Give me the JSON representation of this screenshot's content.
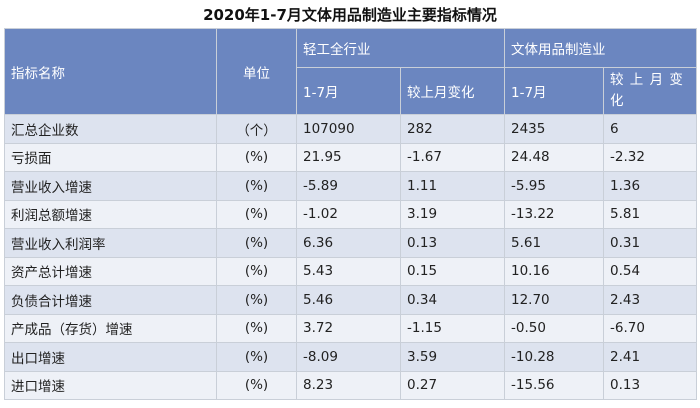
{
  "title": "2020年1-7月文体用品制造业主要指标情况",
  "header": {
    "indicator": "指标名称",
    "unit": "单位",
    "group1": "轻工全行业",
    "group2": "文体用品制造业",
    "sub1": "1-7月",
    "sub2": "较上月变化",
    "sub3": "1-7月",
    "sub4": "较 上 月 变 化"
  },
  "rows": [
    {
      "name": "汇总企业数",
      "unit": "（个）",
      "v1": "107090",
      "v2": "282",
      "v3": "2435",
      "v4": "6"
    },
    {
      "name": "亏损面",
      "unit": "(%)",
      "v1": "21.95",
      "v2": "-1.67",
      "v3": "24.48",
      "v4": "-2.32"
    },
    {
      "name": "营业收入增速",
      "unit": "(%)",
      "v1": "-5.89",
      "v2": "1.11",
      "v3": "-5.95",
      "v4": "1.36"
    },
    {
      "name": "利润总额增速",
      "unit": "(%)",
      "v1": "-1.02",
      "v2": "3.19",
      "v3": "-13.22",
      "v4": "5.81"
    },
    {
      "name": "营业收入利润率",
      "unit": "(%)",
      "v1": "6.36",
      "v2": "0.13",
      "v3": "5.61",
      "v4": "0.31"
    },
    {
      "name": "资产总计增速",
      "unit": "(%)",
      "v1": "5.43",
      "v2": "0.15",
      "v3": "10.16",
      "v4": "0.54"
    },
    {
      "name": "负债合计增速",
      "unit": "(%)",
      "v1": "5.46",
      "v2": "0.34",
      "v3": "12.70",
      "v4": "2.43"
    },
    {
      "name": "产成品（存货）增速",
      "unit": "(%)",
      "v1": "3.72",
      "v2": "-1.15",
      "v3": "-0.50",
      "v4": "-6.70"
    },
    {
      "name": "出口增速",
      "unit": "(%)",
      "v1": "-8.09",
      "v2": "3.59",
      "v3": "-10.28",
      "v4": "2.41"
    },
    {
      "name": "进口增速",
      "unit": "(%)",
      "v1": "8.23",
      "v2": "0.27",
      "v3": "-15.56",
      "v4": "0.13"
    }
  ]
}
